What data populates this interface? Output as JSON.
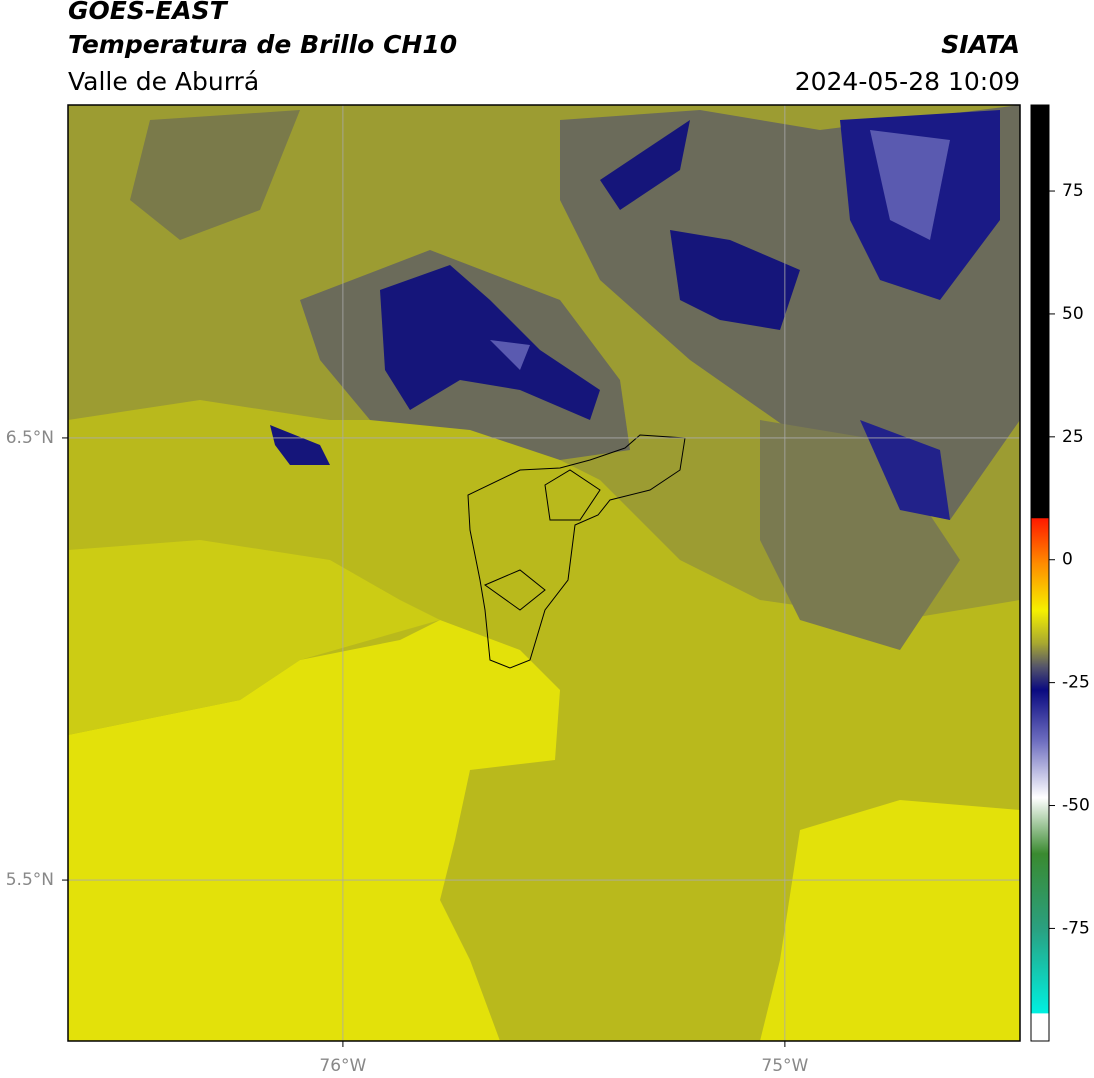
{
  "header": {
    "title": "GOES-EAST",
    "subtitle": "Temperatura de Brillo CH10",
    "region": "Valle de Aburrá",
    "source": "SIATA",
    "datetime": "2024-05-28 10:09"
  },
  "map": {
    "xlim": [
      -76.622,
      -74.468
    ],
    "ylim": [
      5.136,
      7.253
    ],
    "grid": true,
    "lat_ticks": [
      {
        "value": 6.5,
        "label": "6.5°N"
      },
      {
        "value": 5.5,
        "label": "5.5°N"
      }
    ],
    "lon_ticks": [
      {
        "value": -76,
        "label": "76°W"
      },
      {
        "value": -75,
        "label": "75°W"
      }
    ]
  },
  "colorbar": {
    "lim": [
      -97.9,
      92.5
    ],
    "ticks": [
      75,
      50,
      25,
      0,
      -25,
      -50,
      -75
    ]
  }
}
